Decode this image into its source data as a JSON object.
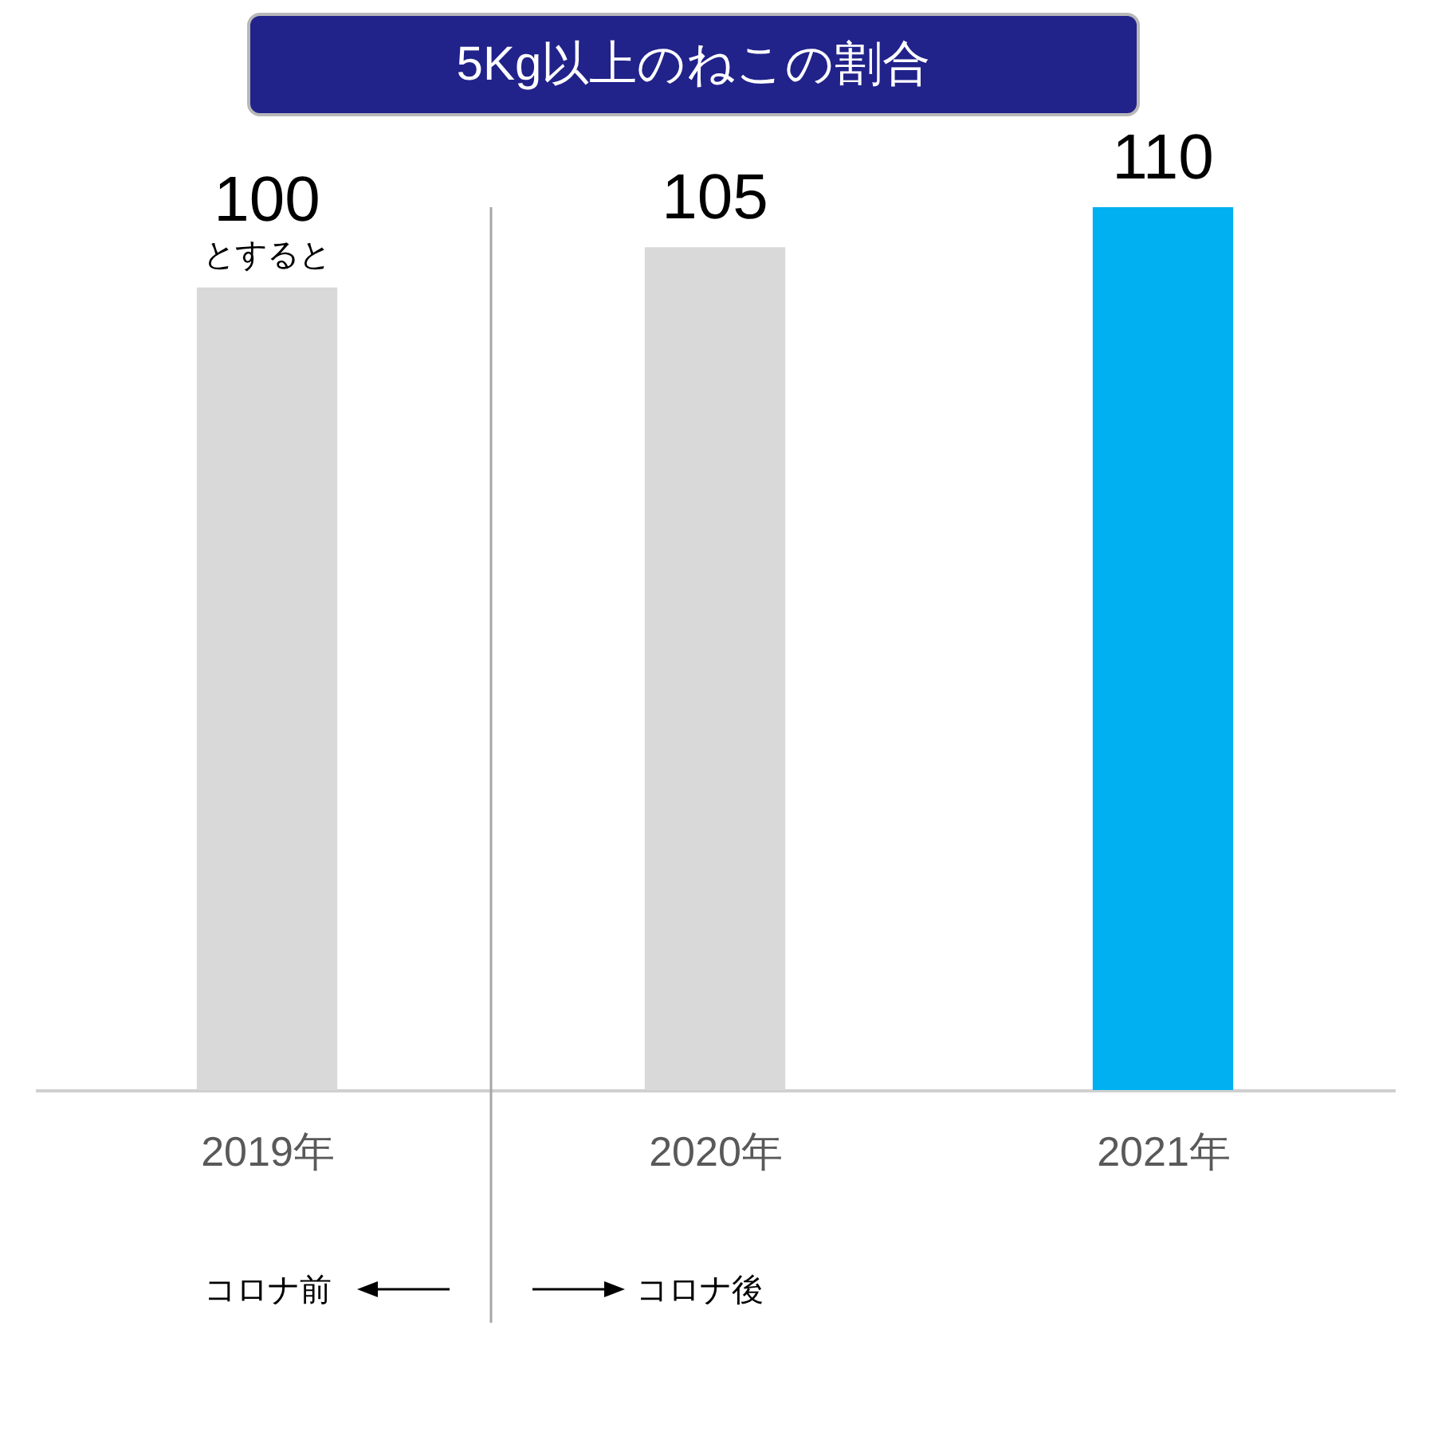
{
  "chart_data": {
    "type": "bar",
    "title": "5Kg以上のねこの割合",
    "x": [
      2019,
      2020,
      2021
    ],
    "values": [
      100,
      105,
      110
    ],
    "colors": [
      "#d9d9d9",
      "#d9d9d9",
      "#00b0f0"
    ],
    "data_labels": true,
    "xlim": [
      2018.5,
      2021.5
    ],
    "xticks": [
      {
        "value": 2019,
        "label": "2019年"
      },
      {
        "value": 2020,
        "label": "2020年"
      },
      {
        "value": 2021,
        "label": "2021年"
      }
    ],
    "ref_lines": [
      {
        "axis": "x",
        "value": 2019.5,
        "color": "#a6a6a6"
      }
    ],
    "annotations": [
      {
        "text": "とすると",
        "x": 2019,
        "y": 100
      },
      "コロナ前",
      "コロナ後"
    ]
  }
}
